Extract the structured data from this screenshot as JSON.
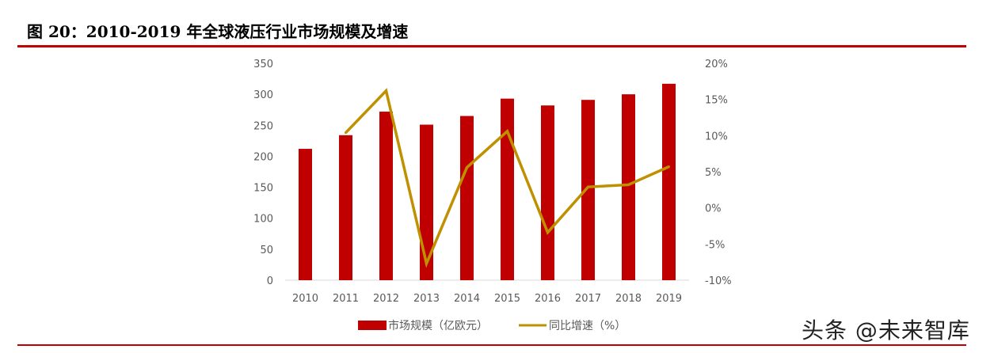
{
  "figure_title": "图 20：2010-2019 年全球液压行业市场规模及增速",
  "watermark": "头条 @未来智库",
  "colors": {
    "bar": "#c00000",
    "line": "#bf9000",
    "rule": "#c00000",
    "axis": "#d9d9d9"
  },
  "chart_data": {
    "type": "bar",
    "categories": [
      "2010",
      "2011",
      "2012",
      "2013",
      "2014",
      "2015",
      "2016",
      "2017",
      "2018",
      "2019"
    ],
    "series": [
      {
        "name": "市场规模（亿欧元）",
        "type": "bar",
        "axis": "left",
        "values": [
          212,
          234,
          272,
          251,
          265,
          293,
          282,
          291,
          300,
          317
        ]
      },
      {
        "name": "同比增速（%）",
        "type": "line",
        "axis": "right",
        "values": [
          null,
          10.4,
          16.2,
          -7.7,
          5.6,
          10.6,
          -3.4,
          2.9,
          3.2,
          5.7
        ]
      }
    ],
    "y_left": {
      "ylim": [
        0,
        350
      ],
      "ticks": [
        "0",
        "50",
        "100",
        "150",
        "200",
        "250",
        "300",
        "350"
      ]
    },
    "y_right": {
      "ylim": [
        -10,
        20
      ],
      "ticks": [
        "-10%",
        "-5%",
        "0%",
        "5%",
        "10%",
        "15%",
        "20%"
      ]
    },
    "legend_position": "bottom"
  }
}
